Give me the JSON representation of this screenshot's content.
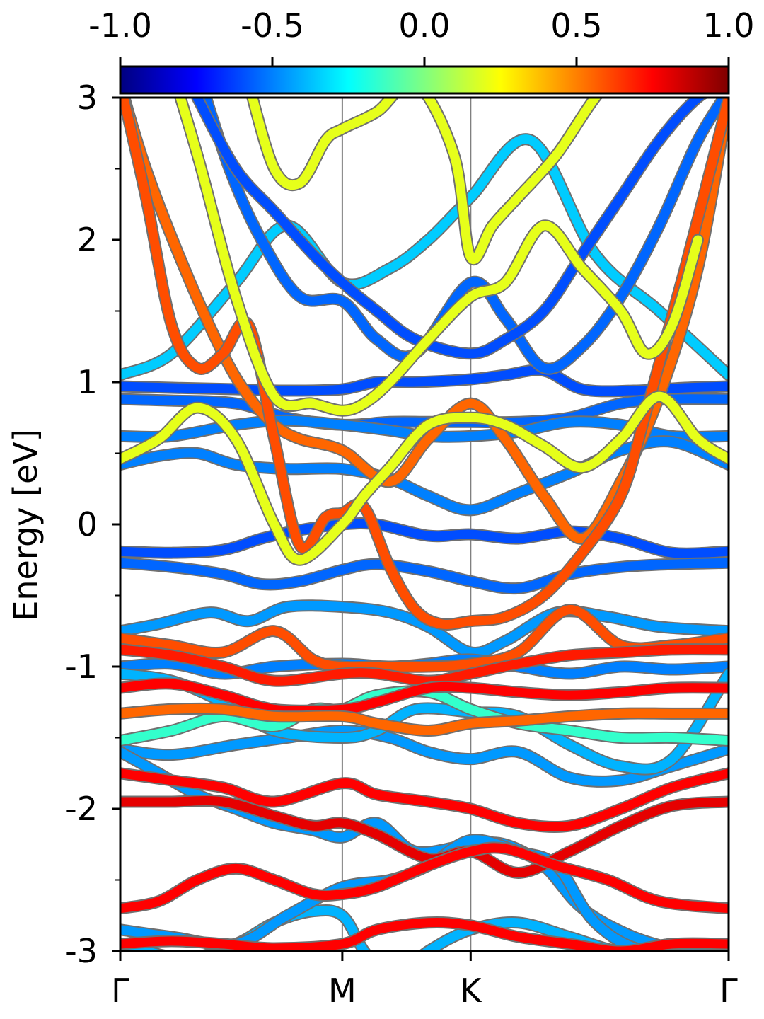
{
  "chart_data": {
    "type": "line",
    "title": "",
    "xlabel": "",
    "ylabel": "Energy [eV]",
    "ylim": [
      -3,
      3
    ],
    "xlim": [
      0,
      4.74
    ],
    "x_ticks": [
      {
        "x": 0.0,
        "label": "Γ"
      },
      {
        "x": 1.73,
        "label": "M"
      },
      {
        "x": 2.73,
        "label": "K"
      },
      {
        "x": 4.74,
        "label": "Γ"
      }
    ],
    "y_ticks": [
      {
        "y": 3,
        "label": "3"
      },
      {
        "y": 2,
        "label": "2"
      },
      {
        "y": 1,
        "label": "1"
      },
      {
        "y": 0,
        "label": "0"
      },
      {
        "y": -1,
        "label": "-1"
      },
      {
        "y": -2,
        "label": "-2"
      },
      {
        "y": -3,
        "label": "-3"
      }
    ],
    "y_minor_ticks": [
      2.5,
      1.5,
      0.5,
      -0.5,
      -1.5,
      -2.5
    ],
    "colorbar": {
      "colormap": "jet",
      "range": [
        -1.0,
        1.0
      ],
      "tick_labels": [
        "-1.0",
        "-0.5",
        "0.0",
        "0.5",
        "1.0"
      ],
      "tick_values": [
        -1.0,
        -0.5,
        0.0,
        0.5,
        1.0
      ],
      "stops": [
        "#000080",
        "#0000ff",
        "#0080ff",
        "#00ffff",
        "#80ff80",
        "#ffff00",
        "#ff8000",
        "#ff0000",
        "#800000"
      ]
    },
    "grid": false,
    "vlines_at": [
      1.73,
      2.73
    ],
    "series": [
      {
        "x": [
          0,
          0.4,
          0.9,
          1.3,
          1.73,
          2.1,
          2.4,
          2.73,
          3.2,
          3.7,
          4.2,
          4.74
        ],
        "y": [
          1.05,
          1.2,
          1.7,
          2.1,
          1.7,
          1.8,
          2.0,
          2.3,
          2.7,
          1.9,
          1.5,
          1.05
        ],
        "c": -0.35
      },
      {
        "x": [
          0,
          0.4,
          0.9,
          1.3,
          1.73,
          2.0,
          2.3,
          2.73,
          3.0,
          3.3,
          3.6,
          4.0,
          4.4,
          4.74
        ],
        "y": [
          0.97,
          0.96,
          0.95,
          0.94,
          0.95,
          1.0,
          1.0,
          1.02,
          1.05,
          1.08,
          0.95,
          0.94,
          0.96,
          0.97
        ],
        "c": -0.6
      },
      {
        "x": [
          0,
          0.4,
          0.9,
          1.3,
          1.73,
          2.1,
          2.4,
          2.73,
          3.1,
          3.5,
          3.9,
          4.3,
          4.74
        ],
        "y": [
          0.88,
          0.87,
          0.85,
          0.75,
          0.7,
          0.72,
          0.72,
          0.72,
          0.72,
          0.75,
          0.85,
          0.88,
          0.88
        ],
        "c": -0.55
      },
      {
        "x": [
          0,
          0.4,
          0.9,
          1.3,
          1.73,
          2.1,
          2.4,
          2.73,
          3.1,
          3.5,
          3.9,
          4.3,
          4.74
        ],
        "y": [
          0.62,
          0.62,
          0.7,
          0.73,
          0.7,
          0.66,
          0.62,
          0.62,
          0.65,
          0.72,
          0.7,
          0.62,
          0.62
        ],
        "c": -0.5
      },
      {
        "x": [
          0,
          0.3,
          0.6,
          0.9,
          1.3,
          1.73,
          2.1,
          2.4,
          2.73,
          3.1,
          3.5,
          3.9,
          4.3,
          4.74
        ],
        "y": [
          0.42,
          0.48,
          0.5,
          0.42,
          0.39,
          0.39,
          0.32,
          0.2,
          0.1,
          0.22,
          0.36,
          0.52,
          0.58,
          0.42
        ],
        "c": -0.5
      },
      {
        "x": [
          0,
          0.4,
          0.8,
          1.1,
          1.4,
          1.73,
          2.0,
          2.4,
          2.73,
          3.1,
          3.5,
          3.9,
          4.3,
          4.74
        ],
        "y": [
          -0.19,
          -0.2,
          -0.18,
          -0.1,
          -0.04,
          0.0,
          0.0,
          -0.08,
          -0.07,
          -0.1,
          -0.05,
          -0.1,
          -0.2,
          -0.19
        ],
        "c": -0.6
      },
      {
        "x": [
          0,
          0.4,
          0.8,
          1.1,
          1.4,
          1.73,
          2.0,
          2.4,
          2.73,
          3.1,
          3.5,
          3.9,
          4.3,
          4.74
        ],
        "y": [
          -0.27,
          -0.3,
          -0.35,
          -0.42,
          -0.4,
          -0.32,
          -0.28,
          -0.33,
          -0.4,
          -0.45,
          -0.35,
          -0.3,
          -0.28,
          -0.27
        ],
        "c": -0.55
      },
      {
        "x": [
          0,
          0.3,
          0.7,
          1.0,
          1.3,
          1.73,
          2.1,
          2.4,
          2.73,
          3.0,
          3.4,
          3.8,
          4.2,
          4.74
        ],
        "y": [
          -0.75,
          -0.7,
          -0.62,
          -0.68,
          -0.58,
          -0.58,
          -0.62,
          -0.72,
          -0.9,
          -0.82,
          -0.62,
          -0.65,
          -0.72,
          -0.75
        ],
        "c": -0.45
      },
      {
        "x": [
          0,
          0.4,
          0.8,
          1.2,
          1.73,
          2.1,
          2.4,
          2.73,
          3.1,
          3.5,
          3.9,
          4.3,
          4.74
        ],
        "y": [
          -1.0,
          -0.98,
          -1.05,
          -1.0,
          -0.98,
          -1.0,
          -0.98,
          -0.95,
          -1.0,
          -1.05,
          -1.0,
          -1.02,
          -1.0
        ],
        "c": -0.5
      },
      {
        "x": [
          0,
          0.4,
          0.9,
          1.3,
          1.73,
          2.1,
          2.4,
          2.73,
          3.1,
          3.5,
          3.9,
          4.3,
          4.74
        ],
        "y": [
          -1.58,
          -1.62,
          -1.55,
          -1.5,
          -1.45,
          -1.5,
          -1.6,
          -1.65,
          -1.6,
          -1.78,
          -1.8,
          -1.7,
          -1.58
        ],
        "c": -0.45
      },
      {
        "x": [
          0,
          0.4,
          0.8,
          1.2,
          1.73,
          2.0,
          2.3,
          2.73,
          3.1,
          3.5,
          3.9,
          4.3,
          4.74
        ],
        "y": [
          -1.05,
          -1.1,
          -1.25,
          -1.45,
          -1.5,
          -1.45,
          -1.3,
          -1.32,
          -1.35,
          -1.55,
          -1.7,
          -1.65,
          -1.05
        ],
        "c": -0.4
      },
      {
        "x": [
          0,
          0.4,
          0.8,
          1.2,
          1.5,
          1.73,
          2.0,
          2.4,
          2.73,
          3.1,
          3.5,
          3.9,
          4.3,
          4.74
        ],
        "y": [
          -1.52,
          -1.45,
          -1.35,
          -1.42,
          -1.3,
          -1.3,
          -1.2,
          -1.18,
          -1.3,
          -1.4,
          -1.45,
          -1.5,
          -1.5,
          -1.52
        ],
        "c": -0.15
      },
      {
        "x": [
          0,
          0.5,
          0.9,
          1.2,
          1.5,
          1.73,
          1.9,
          2.1,
          2.4,
          2.73,
          3.1,
          3.5,
          3.9,
          4.3,
          4.74
        ],
        "y": [
          -2.95,
          -3.05,
          -2.95,
          -2.8,
          -2.72,
          -2.75,
          -3.0,
          -3.2,
          -3.0,
          -2.85,
          -2.8,
          -2.9,
          -3.0,
          -2.95,
          -2.95
        ],
        "c": -0.4
      },
      {
        "x": [
          0,
          0.3,
          0.6,
          0.9,
          1.2,
          1.5,
          1.73,
          2.0,
          2.3,
          2.73,
          3.0,
          3.3,
          3.6,
          4.0,
          4.4,
          4.74
        ],
        "y": [
          -1.6,
          -1.75,
          -1.9,
          -2.0,
          -2.1,
          -2.15,
          -2.2,
          -2.1,
          -2.3,
          -2.25,
          -2.25,
          -2.4,
          -2.7,
          -2.9,
          -3.0,
          -3.05
        ],
        "c": -0.45
      },
      {
        "x": [
          0,
          0.4,
          0.9,
          1.3,
          1.73,
          2.1,
          2.4,
          2.73,
          3.1,
          3.4,
          3.7,
          4.1,
          4.74
        ],
        "y": [
          -2.85,
          -2.9,
          -2.95,
          -2.75,
          -2.55,
          -2.5,
          -2.4,
          -2.22,
          -2.3,
          -2.4,
          -2.8,
          -3.0,
          -3.0
        ],
        "c": -0.45
      },
      {
        "x": [
          0.6,
          0.85,
          1.1,
          1.4,
          1.73,
          2.0,
          2.3,
          2.73,
          3.0,
          3.3,
          3.6,
          3.9,
          4.2,
          4.5,
          4.74
        ],
        "y": [
          3.2,
          2.5,
          2.0,
          1.6,
          1.57,
          1.3,
          1.2,
          1.7,
          1.45,
          1.1,
          1.25,
          1.6,
          2.1,
          2.7,
          3.05
        ],
        "c": -0.55
      },
      {
        "x": [
          0.6,
          0.9,
          1.2,
          1.5,
          1.73,
          2.0,
          2.3,
          2.73,
          3.0,
          3.3,
          3.6,
          3.9,
          4.2,
          4.5,
          4.74
        ],
        "y": [
          3.0,
          2.5,
          2.2,
          1.9,
          1.7,
          1.5,
          1.3,
          1.2,
          1.3,
          1.5,
          1.9,
          2.3,
          2.7,
          3.0,
          3.1
        ],
        "c": -0.6
      },
      {
        "x": [
          0,
          0.2,
          0.5,
          0.8,
          1.0,
          1.2,
          1.4,
          1.73,
          2.1,
          2.4,
          2.73,
          3.0,
          3.3,
          3.6,
          3.9,
          4.2,
          4.5,
          4.74
        ],
        "y": [
          3.1,
          2.5,
          1.8,
          1.2,
          0.9,
          0.7,
          0.6,
          0.52,
          0.3,
          0.6,
          0.85,
          0.6,
          0.2,
          -0.1,
          0.3,
          0.9,
          1.8,
          3.0
        ],
        "c": 0.55
      },
      {
        "x": [
          0,
          0.2,
          0.4,
          0.6,
          0.8,
          1.0,
          1.2,
          1.4,
          1.6,
          1.73,
          1.9,
          2.1,
          2.3,
          2.5,
          2.73,
          3.0,
          3.3,
          3.6,
          3.9,
          4.1,
          4.4,
          4.74
        ],
        "y": [
          3.1,
          2.3,
          1.4,
          1.1,
          1.2,
          1.4,
          0.6,
          -0.15,
          0.05,
          0.08,
          0.12,
          -0.3,
          -0.6,
          -0.7,
          -0.68,
          -0.65,
          -0.5,
          -0.2,
          0.2,
          0.8,
          1.8,
          3.0
        ],
        "c": 0.6
      },
      {
        "x": [
          0.3,
          0.6,
          0.9,
          1.2,
          1.5,
          1.73,
          1.9,
          2.1,
          2.4,
          2.73,
          3.0,
          3.3,
          3.6,
          3.9,
          4.1,
          4.3,
          4.5
        ],
        "y": [
          3.5,
          2.6,
          1.6,
          0.9,
          0.85,
          0.8,
          0.85,
          1.0,
          1.3,
          1.6,
          1.7,
          2.1,
          1.8,
          1.5,
          1.2,
          1.4,
          2.0
        ],
        "c": 0.2
      },
      {
        "x": [
          0,
          0.3,
          0.6,
          0.9,
          1.2,
          1.4,
          1.73,
          1.9,
          2.1,
          2.4,
          2.73,
          3.0,
          3.3,
          3.6,
          3.9,
          4.2,
          4.5,
          4.74
        ],
        "y": [
          0.46,
          0.6,
          0.82,
          0.6,
          0.0,
          -0.25,
          0.0,
          0.2,
          0.4,
          0.7,
          0.75,
          0.7,
          0.55,
          0.4,
          0.6,
          0.9,
          0.6,
          0.46
        ],
        "c": 0.2
      },
      {
        "x": [
          1.0,
          1.2,
          1.4,
          1.6,
          1.73,
          2.0,
          2.3,
          2.6,
          2.73,
          2.9,
          3.1,
          3.4,
          3.7,
          4.0
        ],
        "y": [
          3.1,
          2.5,
          2.4,
          2.7,
          2.78,
          2.9,
          3.1,
          2.6,
          1.88,
          2.1,
          2.3,
          2.6,
          3.0,
          3.3
        ],
        "c": 0.2
      },
      {
        "x": [
          0,
          0.4,
          0.8,
          1.2,
          1.5,
          1.73,
          2.0,
          2.4,
          2.73,
          3.1,
          3.5,
          3.9,
          4.3,
          4.74
        ],
        "y": [
          -0.8,
          -0.85,
          -0.9,
          -0.75,
          -0.95,
          -1.0,
          -1.0,
          -1.0,
          -0.98,
          -0.9,
          -0.6,
          -0.85,
          -0.85,
          -0.8
        ],
        "c": 0.6
      },
      {
        "x": [
          0,
          0.4,
          0.8,
          1.2,
          1.73,
          2.0,
          2.4,
          2.73,
          3.1,
          3.5,
          3.9,
          4.3,
          4.74
        ],
        "y": [
          -0.88,
          -0.92,
          -1.0,
          -1.1,
          -1.05,
          -1.05,
          -1.1,
          -1.05,
          -0.98,
          -0.92,
          -0.9,
          -0.88,
          -0.88
        ],
        "c": 0.7
      },
      {
        "x": [
          0,
          0.4,
          0.8,
          1.2,
          1.73,
          2.0,
          2.4,
          2.73,
          3.1,
          3.5,
          3.9,
          4.3,
          4.74
        ],
        "y": [
          -1.15,
          -1.12,
          -1.2,
          -1.3,
          -1.3,
          -1.25,
          -1.15,
          -1.15,
          -1.18,
          -1.2,
          -1.18,
          -1.15,
          -1.15
        ],
        "c": 0.75
      },
      {
        "x": [
          0,
          0.4,
          0.8,
          1.2,
          1.73,
          2.0,
          2.4,
          2.73,
          3.1,
          3.5,
          3.9,
          4.3,
          4.74
        ],
        "y": [
          -1.33,
          -1.3,
          -1.3,
          -1.35,
          -1.35,
          -1.4,
          -1.45,
          -1.4,
          -1.38,
          -1.35,
          -1.33,
          -1.33,
          -1.33
        ],
        "c": 0.55
      },
      {
        "x": [
          0,
          0.4,
          0.8,
          1.2,
          1.73,
          2.0,
          2.4,
          2.73,
          3.1,
          3.5,
          3.9,
          4.3,
          4.74
        ],
        "y": [
          -1.75,
          -1.8,
          -1.85,
          -1.95,
          -1.82,
          -1.9,
          -1.95,
          -2.0,
          -2.1,
          -2.12,
          -2.0,
          -1.85,
          -1.75
        ],
        "c": 0.75
      },
      {
        "x": [
          0,
          0.4,
          0.8,
          1.2,
          1.5,
          1.73,
          2.0,
          2.4,
          2.73,
          3.1,
          3.5,
          3.9,
          4.3,
          4.74
        ],
        "y": [
          -1.95,
          -1.95,
          -1.95,
          -2.05,
          -2.12,
          -2.1,
          -2.18,
          -2.35,
          -2.3,
          -2.45,
          -2.3,
          -2.12,
          -1.98,
          -1.95
        ],
        "c": 0.8
      },
      {
        "x": [
          0,
          0.3,
          0.6,
          0.9,
          1.2,
          1.5,
          1.73,
          2.0,
          2.4,
          2.73,
          3.0,
          3.4,
          3.8,
          4.2,
          4.74
        ],
        "y": [
          -2.7,
          -2.65,
          -2.5,
          -2.42,
          -2.5,
          -2.6,
          -2.6,
          -2.55,
          -2.4,
          -2.3,
          -2.28,
          -2.4,
          -2.5,
          -2.65,
          -2.7
        ],
        "c": 0.75
      },
      {
        "x": [
          0,
          0.4,
          0.8,
          1.2,
          1.73,
          2.0,
          2.4,
          2.73,
          3.1,
          3.5,
          3.9,
          4.3,
          4.74
        ],
        "y": [
          -2.95,
          -2.93,
          -2.95,
          -2.98,
          -2.95,
          -2.85,
          -2.8,
          -2.82,
          -2.9,
          -2.95,
          -3.0,
          -2.95,
          -2.95
        ],
        "c": 0.75
      }
    ]
  }
}
